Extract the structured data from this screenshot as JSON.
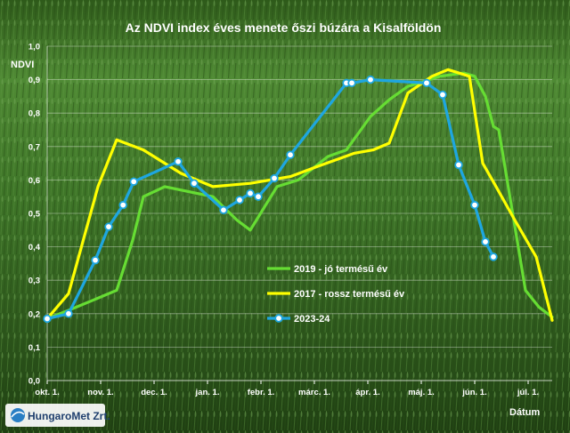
{
  "chart_data": {
    "type": "line",
    "title": "Az NDVI index éves menete őszi búzára a Kisalföldön",
    "ylabel": "NDVI",
    "xlabel": "Dátum",
    "ylim": [
      0,
      1
    ],
    "yticks": [
      "0,0",
      "0,1",
      "0,2",
      "0,3",
      "0,4",
      "0,5",
      "0,6",
      "0,7",
      "0,8",
      "0,9",
      "1,0"
    ],
    "xticks": [
      {
        "label": "okt. 1.",
        "x": 0
      },
      {
        "label": "nov. 1.",
        "x": 1
      },
      {
        "label": "dec. 1.",
        "x": 2
      },
      {
        "label": "jan. 1.",
        "x": 3
      },
      {
        "label": "febr. 1.",
        "x": 4
      },
      {
        "label": "márc. 1.",
        "x": 5
      },
      {
        "label": "ápr. 1.",
        "x": 6
      },
      {
        "label": "máj. 1.",
        "x": 7
      },
      {
        "label": "jún. 1.",
        "x": 8
      },
      {
        "label": "júl. 1.",
        "x": 9
      }
    ],
    "xlim": [
      0,
      9.45
    ],
    "grid": true,
    "series": [
      {
        "name": "2019 - jó termésű év",
        "color": "#66dd33",
        "markers": false,
        "x": [
          0,
          0.4,
          0.85,
          1.3,
          1.6,
          1.8,
          2.2,
          2.8,
          3.1,
          3.55,
          3.8,
          4.3,
          4.7,
          5.25,
          5.6,
          6.05,
          6.4,
          6.75,
          7.35,
          7.8,
          8.0,
          8.2,
          8.35,
          8.45,
          8.95,
          9.2,
          9.45
        ],
        "y": [
          0.185,
          0.21,
          0.24,
          0.27,
          0.42,
          0.55,
          0.58,
          0.56,
          0.55,
          0.48,
          0.45,
          0.58,
          0.6,
          0.67,
          0.69,
          0.79,
          0.84,
          0.88,
          0.91,
          0.92,
          0.91,
          0.85,
          0.76,
          0.75,
          0.27,
          0.22,
          0.19
        ]
      },
      {
        "name": "2017 - rossz termésű év",
        "color": "#ffff00",
        "markers": false,
        "x": [
          0,
          0.4,
          0.95,
          1.3,
          1.8,
          2.5,
          3.1,
          3.8,
          4.55,
          5.05,
          5.75,
          6.1,
          6.4,
          6.75,
          7.2,
          7.5,
          7.9,
          8.15,
          8.4,
          8.75,
          9.15,
          9.45
        ],
        "y": [
          0.185,
          0.26,
          0.58,
          0.72,
          0.69,
          0.62,
          0.58,
          0.59,
          0.61,
          0.64,
          0.68,
          0.69,
          0.71,
          0.86,
          0.91,
          0.93,
          0.91,
          0.65,
          0.58,
          0.48,
          0.37,
          0.18
        ]
      },
      {
        "name": "2023-24",
        "color": "#1ea6e0",
        "markers": true,
        "x": [
          0,
          0.4,
          0.9,
          1.15,
          1.42,
          1.62,
          2.45,
          2.75,
          3.3,
          3.6,
          3.8,
          3.95,
          4.25,
          4.55,
          5.6,
          5.7,
          6.05,
          7.1,
          7.4,
          7.7,
          8.0,
          8.2,
          8.35
        ],
        "y": [
          0.185,
          0.2,
          0.36,
          0.46,
          0.525,
          0.595,
          0.655,
          0.59,
          0.51,
          0.54,
          0.56,
          0.55,
          0.605,
          0.675,
          0.89,
          0.89,
          0.9,
          0.89,
          0.855,
          0.645,
          0.525,
          0.415,
          0.37
        ]
      }
    ],
    "legend_position": "center-right"
  },
  "logo": {
    "text": "HungaroMet Zrt."
  }
}
